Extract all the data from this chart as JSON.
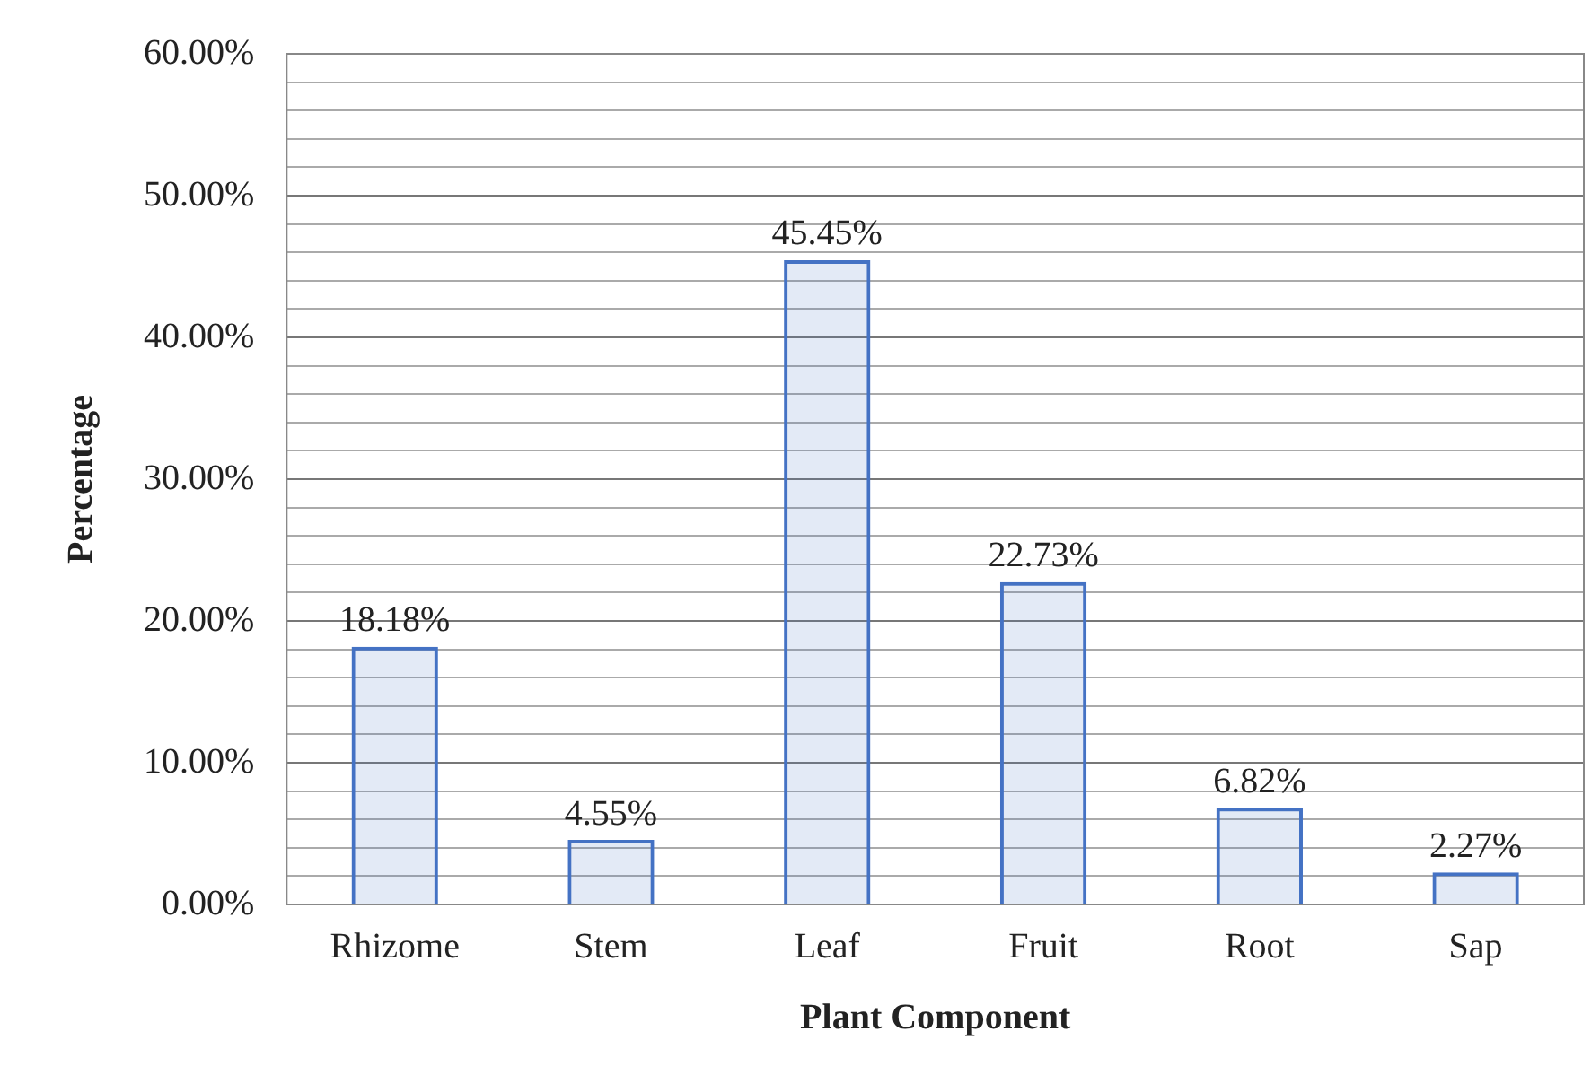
{
  "chart_data": {
    "type": "bar",
    "xlabel": "Plant Component",
    "ylabel": "Percentage",
    "categories": [
      "Rhizome",
      "Stem",
      "Leaf",
      "Fruit",
      "Root",
      "Sap"
    ],
    "values": [
      18.18,
      4.55,
      45.45,
      22.73,
      6.82,
      2.27
    ],
    "value_labels": [
      "18.18%",
      "4.55%",
      "45.45%",
      "22.73%",
      "6.82%",
      "2.27%"
    ],
    "color": "#4472c4",
    "ylim": [
      0,
      60
    ],
    "yticks": [
      {
        "value": 0,
        "label": "0.00%"
      },
      {
        "value": 2,
        "label": null
      },
      {
        "value": 4,
        "label": null
      },
      {
        "value": 6,
        "label": null
      },
      {
        "value": 8,
        "label": null
      },
      {
        "value": 10,
        "label": "10.00%"
      },
      {
        "value": 12,
        "label": null
      },
      {
        "value": 14,
        "label": null
      },
      {
        "value": 16,
        "label": null
      },
      {
        "value": 18,
        "label": null
      },
      {
        "value": 20,
        "label": "20.00%"
      },
      {
        "value": 22,
        "label": null
      },
      {
        "value": 24,
        "label": null
      },
      {
        "value": 26,
        "label": null
      },
      {
        "value": 28,
        "label": null
      },
      {
        "value": 30,
        "label": "30.00%"
      },
      {
        "value": 32,
        "label": null
      },
      {
        "value": 34,
        "label": null
      },
      {
        "value": 36,
        "label": null
      },
      {
        "value": 38,
        "label": null
      },
      {
        "value": 40,
        "label": "40.00%"
      },
      {
        "value": 42,
        "label": null
      },
      {
        "value": 44,
        "label": null
      },
      {
        "value": 46,
        "label": null
      },
      {
        "value": 48,
        "label": null
      },
      {
        "value": 50,
        "label": "50.00%"
      },
      {
        "value": 52,
        "label": null
      },
      {
        "value": 54,
        "label": null
      },
      {
        "value": 56,
        "label": null
      },
      {
        "value": 58,
        "label": null
      },
      {
        "value": 60,
        "label": "60.00%"
      }
    ],
    "grid": "y",
    "legend": false
  }
}
